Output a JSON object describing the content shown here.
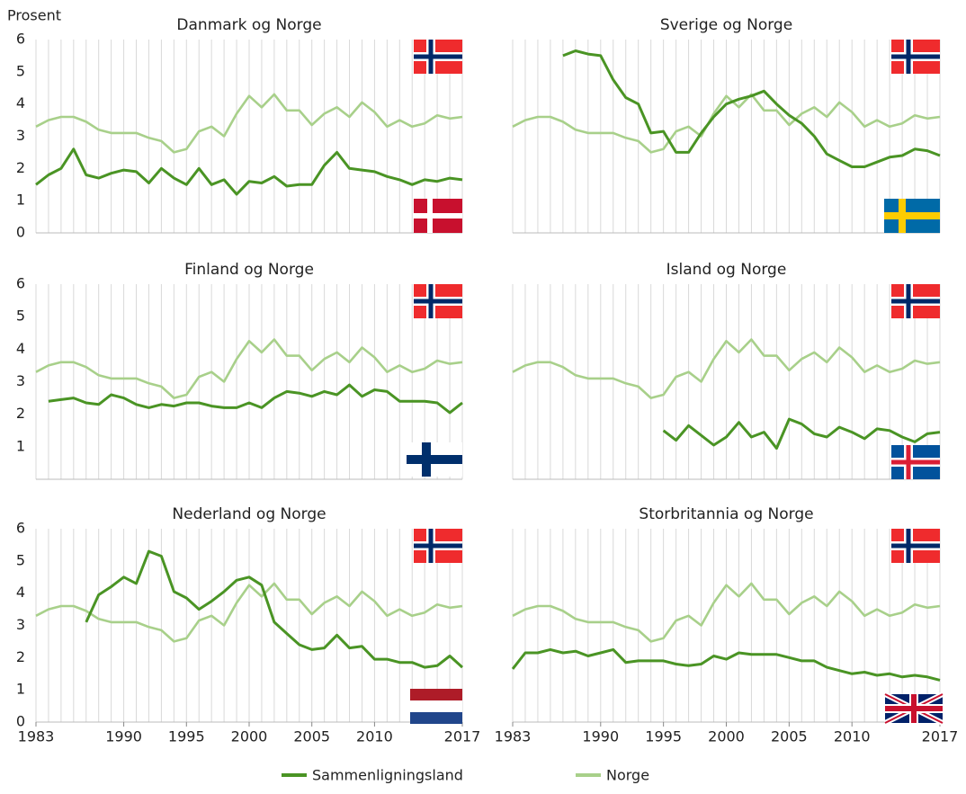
{
  "chart_data": [
    {
      "type": "line",
      "title": "Danmark og Norge",
      "y_label": "Prosent",
      "x": [
        1983,
        1984,
        1985,
        1986,
        1987,
        1988,
        1989,
        1990,
        1991,
        1992,
        1993,
        1994,
        1995,
        1996,
        1997,
        1998,
        1999,
        2000,
        2001,
        2002,
        2003,
        2004,
        2005,
        2006,
        2007,
        2008,
        2009,
        2010,
        2011,
        2012,
        2013,
        2014,
        2015,
        2016,
        2017
      ],
      "xlim": [
        1983,
        2017
      ],
      "ylim": [
        0,
        6
      ],
      "yticks": [
        0,
        1,
        2,
        3,
        4,
        5,
        6
      ],
      "series": [
        {
          "name": "Sammenligningsland",
          "color": "#4a9424",
          "values": [
            1.5,
            1.8,
            2.0,
            2.6,
            1.8,
            1.7,
            1.85,
            1.95,
            1.9,
            1.55,
            2.0,
            1.7,
            1.5,
            2.0,
            1.5,
            1.65,
            1.2,
            1.6,
            1.55,
            1.75,
            1.45,
            1.5,
            1.5,
            2.1,
            2.5,
            2.0,
            1.95,
            1.9,
            1.75,
            1.65,
            1.5,
            1.65,
            1.6,
            1.7,
            1.65
          ]
        },
        {
          "name": "Norge",
          "color": "#a8d08a",
          "values": [
            3.3,
            3.5,
            3.6,
            3.6,
            3.45,
            3.2,
            3.1,
            3.1,
            3.1,
            2.95,
            2.85,
            2.5,
            2.6,
            3.15,
            3.3,
            3.0,
            3.7,
            4.25,
            3.9,
            4.3,
            3.8,
            3.8,
            3.35,
            3.7,
            3.9,
            3.6,
            4.05,
            3.75,
            3.3,
            3.5,
            3.3,
            3.4,
            3.65,
            3.55,
            3.6
          ]
        }
      ]
    },
    {
      "type": "line",
      "title": "Sverige og Norge",
      "x": [
        1983,
        1984,
        1985,
        1986,
        1987,
        1988,
        1989,
        1990,
        1991,
        1992,
        1993,
        1994,
        1995,
        1996,
        1997,
        1998,
        1999,
        2000,
        2001,
        2002,
        2003,
        2004,
        2005,
        2006,
        2007,
        2008,
        2009,
        2010,
        2011,
        2012,
        2013,
        2014,
        2015,
        2016,
        2017
      ],
      "xlim": [
        1983,
        2017
      ],
      "ylim": [
        0,
        6
      ],
      "series": [
        {
          "name": "Sammenligningsland",
          "color": "#4a9424",
          "values": [
            null,
            null,
            null,
            null,
            5.5,
            5.65,
            5.55,
            5.5,
            4.75,
            4.2,
            4.0,
            3.1,
            3.15,
            2.5,
            2.5,
            3.1,
            3.6,
            4.0,
            4.15,
            4.25,
            4.4,
            4.0,
            3.65,
            3.4,
            3.0,
            2.45,
            2.25,
            2.05,
            2.05,
            2.2,
            2.35,
            2.4,
            2.6,
            2.55,
            2.4
          ]
        },
        {
          "name": "Norge",
          "color": "#a8d08a",
          "values": [
            3.3,
            3.5,
            3.6,
            3.6,
            3.45,
            3.2,
            3.1,
            3.1,
            3.1,
            2.95,
            2.85,
            2.5,
            2.6,
            3.15,
            3.3,
            3.0,
            3.7,
            4.25,
            3.9,
            4.3,
            3.8,
            3.8,
            3.35,
            3.7,
            3.9,
            3.6,
            4.05,
            3.75,
            3.3,
            3.5,
            3.3,
            3.4,
            3.65,
            3.55,
            3.6
          ]
        }
      ]
    },
    {
      "type": "line",
      "title": "Finland og Norge",
      "x": [
        1983,
        1984,
        1985,
        1986,
        1987,
        1988,
        1989,
        1990,
        1991,
        1992,
        1993,
        1994,
        1995,
        1996,
        1997,
        1998,
        1999,
        2000,
        2001,
        2002,
        2003,
        2004,
        2005,
        2006,
        2007,
        2008,
        2009,
        2010,
        2011,
        2012,
        2013,
        2014,
        2015,
        2016,
        2017
      ],
      "xlim": [
        1983,
        2017
      ],
      "ylim": [
        0,
        6
      ],
      "yticks": [
        1,
        2,
        3,
        4,
        5,
        6
      ],
      "series": [
        {
          "name": "Sammenligningsland",
          "color": "#4a9424",
          "values": [
            null,
            2.4,
            2.45,
            2.5,
            2.35,
            2.3,
            2.6,
            2.5,
            2.3,
            2.2,
            2.3,
            2.25,
            2.35,
            2.35,
            2.25,
            2.2,
            2.2,
            2.35,
            2.2,
            2.5,
            2.7,
            2.65,
            2.55,
            2.7,
            2.6,
            2.9,
            2.55,
            2.75,
            2.7,
            2.4,
            2.4,
            2.4,
            2.35,
            2.05,
            2.35
          ]
        },
        {
          "name": "Norge",
          "color": "#a8d08a",
          "values": [
            3.3,
            3.5,
            3.6,
            3.6,
            3.45,
            3.2,
            3.1,
            3.1,
            3.1,
            2.95,
            2.85,
            2.5,
            2.6,
            3.15,
            3.3,
            3.0,
            3.7,
            4.25,
            3.9,
            4.3,
            3.8,
            3.8,
            3.35,
            3.7,
            3.9,
            3.6,
            4.05,
            3.75,
            3.3,
            3.5,
            3.3,
            3.4,
            3.65,
            3.55,
            3.6
          ]
        }
      ]
    },
    {
      "type": "line",
      "title": "Island og Norge",
      "x": [
        1983,
        1984,
        1985,
        1986,
        1987,
        1988,
        1989,
        1990,
        1991,
        1992,
        1993,
        1994,
        1995,
        1996,
        1997,
        1998,
        1999,
        2000,
        2001,
        2002,
        2003,
        2004,
        2005,
        2006,
        2007,
        2008,
        2009,
        2010,
        2011,
        2012,
        2013,
        2014,
        2015,
        2016,
        2017
      ],
      "xlim": [
        1983,
        2017
      ],
      "ylim": [
        0,
        6
      ],
      "series": [
        {
          "name": "Sammenligningsland",
          "color": "#4a9424",
          "values": [
            null,
            null,
            null,
            null,
            null,
            null,
            null,
            null,
            null,
            null,
            null,
            null,
            1.5,
            1.2,
            1.65,
            1.35,
            1.05,
            1.3,
            1.75,
            1.3,
            1.45,
            0.95,
            1.85,
            1.7,
            1.4,
            1.3,
            1.6,
            1.45,
            1.25,
            1.55,
            1.5,
            1.3,
            1.15,
            1.4,
            1.45
          ]
        },
        {
          "name": "Norge",
          "color": "#a8d08a",
          "values": [
            3.3,
            3.5,
            3.6,
            3.6,
            3.45,
            3.2,
            3.1,
            3.1,
            3.1,
            2.95,
            2.85,
            2.5,
            2.6,
            3.15,
            3.3,
            3.0,
            3.7,
            4.25,
            3.9,
            4.3,
            3.8,
            3.8,
            3.35,
            3.7,
            3.9,
            3.6,
            4.05,
            3.75,
            3.3,
            3.5,
            3.3,
            3.4,
            3.65,
            3.55,
            3.6
          ]
        }
      ]
    },
    {
      "type": "line",
      "title": "Nederland og Norge",
      "x": [
        1983,
        1984,
        1985,
        1986,
        1987,
        1988,
        1989,
        1990,
        1991,
        1992,
        1993,
        1994,
        1995,
        1996,
        1997,
        1998,
        1999,
        2000,
        2001,
        2002,
        2003,
        2004,
        2005,
        2006,
        2007,
        2008,
        2009,
        2010,
        2011,
        2012,
        2013,
        2014,
        2015,
        2016,
        2017
      ],
      "xlim": [
        1983,
        2017
      ],
      "ylim": [
        0,
        6
      ],
      "yticks": [
        0,
        1,
        2,
        3,
        4,
        5,
        6
      ],
      "xticks": [
        1983,
        1990,
        1995,
        2000,
        2005,
        2010,
        2017
      ],
      "series": [
        {
          "name": "Sammenligningsland",
          "color": "#4a9424",
          "values": [
            null,
            null,
            null,
            null,
            3.1,
            3.95,
            4.2,
            4.5,
            4.3,
            5.3,
            5.15,
            4.05,
            3.85,
            3.5,
            3.75,
            4.05,
            4.4,
            4.5,
            4.25,
            3.1,
            2.75,
            2.4,
            2.25,
            2.3,
            2.7,
            2.3,
            2.35,
            1.95,
            1.95,
            1.85,
            1.85,
            1.7,
            1.75,
            2.05,
            1.7
          ]
        },
        {
          "name": "Norge",
          "color": "#a8d08a",
          "values": [
            3.3,
            3.5,
            3.6,
            3.6,
            3.45,
            3.2,
            3.1,
            3.1,
            3.1,
            2.95,
            2.85,
            2.5,
            2.6,
            3.15,
            3.3,
            3.0,
            3.7,
            4.25,
            3.9,
            4.3,
            3.8,
            3.8,
            3.35,
            3.7,
            3.9,
            3.6,
            4.05,
            3.75,
            3.3,
            3.5,
            3.3,
            3.4,
            3.65,
            3.55,
            3.6
          ]
        }
      ]
    },
    {
      "type": "line",
      "title": "Storbritannia og Norge",
      "x": [
        1983,
        1984,
        1985,
        1986,
        1987,
        1988,
        1989,
        1990,
        1991,
        1992,
        1993,
        1994,
        1995,
        1996,
        1997,
        1998,
        1999,
        2000,
        2001,
        2002,
        2003,
        2004,
        2005,
        2006,
        2007,
        2008,
        2009,
        2010,
        2011,
        2012,
        2013,
        2014,
        2015,
        2016,
        2017
      ],
      "xlim": [
        1983,
        2017
      ],
      "ylim": [
        0,
        6
      ],
      "xticks": [
        1983,
        1990,
        1995,
        2000,
        2005,
        2010,
        2017
      ],
      "series": [
        {
          "name": "Sammenligningsland",
          "color": "#4a9424",
          "values": [
            1.65,
            2.15,
            2.15,
            2.25,
            2.15,
            2.2,
            2.05,
            2.15,
            2.25,
            1.85,
            1.9,
            1.9,
            1.9,
            1.8,
            1.75,
            1.8,
            2.05,
            1.95,
            2.15,
            2.1,
            2.1,
            2.1,
            2.0,
            1.9,
            1.9,
            1.7,
            1.6,
            1.5,
            1.55,
            1.45,
            1.5,
            1.4,
            1.45,
            1.4,
            1.3
          ]
        },
        {
          "name": "Norge",
          "color": "#a8d08a",
          "values": [
            3.3,
            3.5,
            3.6,
            3.6,
            3.45,
            3.2,
            3.1,
            3.1,
            3.1,
            2.95,
            2.85,
            2.5,
            2.6,
            3.15,
            3.3,
            3.0,
            3.7,
            4.25,
            3.9,
            4.3,
            3.8,
            3.8,
            3.35,
            3.7,
            3.9,
            3.6,
            4.05,
            3.75,
            3.3,
            3.5,
            3.3,
            3.4,
            3.65,
            3.55,
            3.6
          ]
        }
      ]
    }
  ]
}
